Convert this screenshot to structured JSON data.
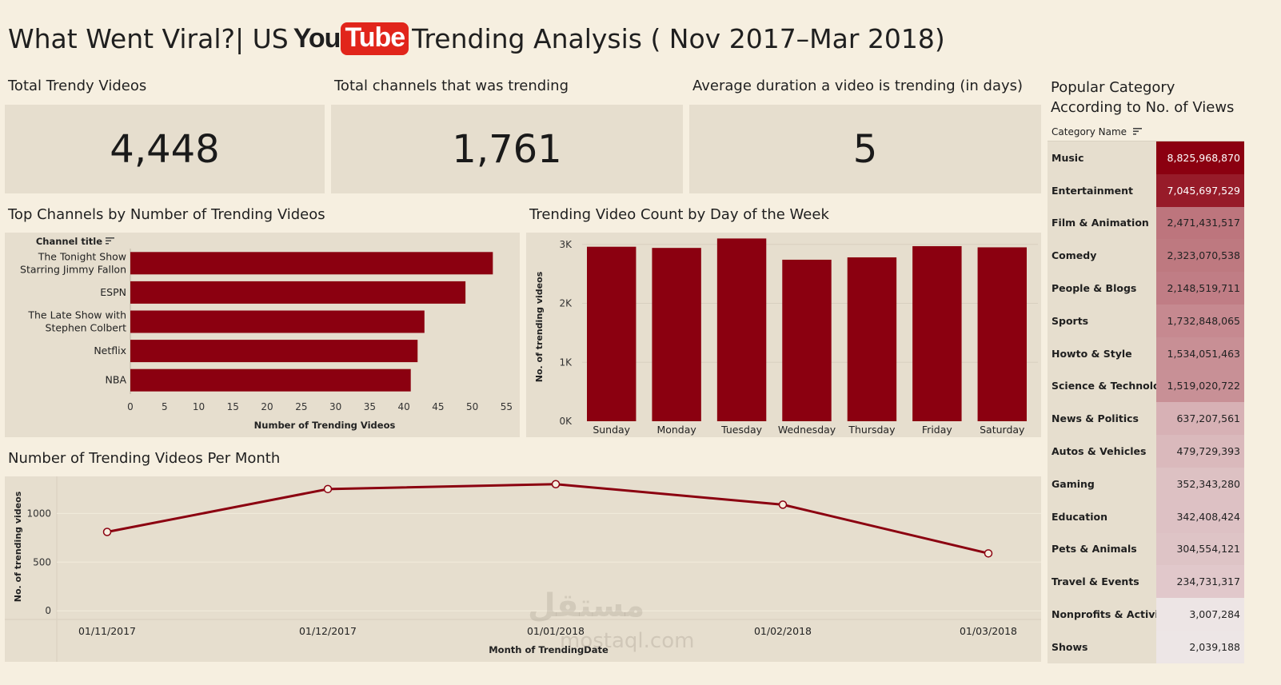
{
  "header": {
    "title_prefix": "What Went Viral?| US",
    "logo_you": "You",
    "logo_tube": "Tube",
    "title_suffix": "Trending Analysis ( Nov 2017–Mar 2018)"
  },
  "kpis": [
    {
      "label": "Total Trendy Videos",
      "value": "4,448"
    },
    {
      "label": "Total channels that was trending",
      "value": "1,761"
    },
    {
      "label": "Average duration a video is trending (in days)",
      "value": "5"
    }
  ],
  "colors": {
    "accent": "#8b0010",
    "panel": "#e6dece",
    "background": "#f6efe0"
  },
  "category_panel": {
    "title_line1": "Popular Category",
    "title_line2": "According to No. of Views",
    "column_header": "Category Name",
    "sort_icon": "sort-icon"
  },
  "chart_data": [
    {
      "type": "bar",
      "orientation": "horizontal",
      "title": "Top Channels by Number of Trending Videos",
      "header": "Channel title",
      "categories": [
        [
          "The Tonight Show",
          "Starring Jimmy Fallon"
        ],
        [
          "ESPN"
        ],
        [
          "The Late Show with",
          "Stephen Colbert"
        ],
        [
          "Netflix"
        ],
        [
          "NBA"
        ]
      ],
      "values": [
        53,
        49,
        43,
        42,
        41
      ],
      "xlabel": "Number of Trending Videos",
      "xticks": [
        0,
        5,
        10,
        15,
        20,
        25,
        30,
        35,
        40,
        45,
        50,
        55
      ],
      "xlim": [
        0,
        56
      ]
    },
    {
      "type": "bar",
      "title": "Trending Video Count by Day of the Week",
      "categories": [
        "Sunday",
        "Monday",
        "Tuesday",
        "Wednesday",
        "Thursday",
        "Friday",
        "Saturday"
      ],
      "values": [
        2960,
        2940,
        3100,
        2740,
        2780,
        2970,
        2950
      ],
      "ylabel": "No. of trending videos",
      "yticks": [
        "0K",
        "1K",
        "2K",
        "3K"
      ],
      "ytick_values": [
        0,
        1000,
        2000,
        3000
      ],
      "ylim": [
        0,
        3200
      ]
    },
    {
      "type": "line",
      "title": "Number of Trending Videos Per Month",
      "x": [
        "01/11/2017",
        "01/12/2017",
        "01/01/2018",
        "01/02/2018",
        "01/03/2018"
      ],
      "values": [
        810,
        1250,
        1300,
        1090,
        590
      ],
      "xlabel": "Month of TrendingDate",
      "ylabel": "No. of trending videos",
      "yticks": [
        0,
        500,
        1000
      ],
      "ylim": [
        -80,
        1380
      ]
    },
    {
      "type": "table",
      "title": "Popular Category According to No. of Views",
      "rows": [
        {
          "name": "Music",
          "views": "8,825,968,870",
          "value": 8825968870
        },
        {
          "name": "Entertainment",
          "views": "7,045,697,529",
          "value": 7045697529
        },
        {
          "name": "Film & Animation",
          "views": "2,471,431,517",
          "value": 2471431517
        },
        {
          "name": "Comedy",
          "views": "2,323,070,538",
          "value": 2323070538
        },
        {
          "name": "People & Blogs",
          "views": "2,148,519,711",
          "value": 2148519711
        },
        {
          "name": "Sports",
          "views": "1,732,848,065",
          "value": 1732848065
        },
        {
          "name": "Howto & Style",
          "views": "1,534,051,463",
          "value": 1534051463
        },
        {
          "name": "Science & Technology",
          "views": "1,519,020,722",
          "value": 1519020722
        },
        {
          "name": "News & Politics",
          "views": "637,207,561",
          "value": 637207561
        },
        {
          "name": "Autos & Vehicles",
          "views": "479,729,393",
          "value": 479729393
        },
        {
          "name": "Gaming",
          "views": "352,343,280",
          "value": 352343280
        },
        {
          "name": "Education",
          "views": "342,408,424",
          "value": 342408424
        },
        {
          "name": "Pets & Animals",
          "views": "304,554,121",
          "value": 304554121
        },
        {
          "name": "Travel & Events",
          "views": "234,731,317",
          "value": 234731317
        },
        {
          "name": "Nonprofits & Activism",
          "views": "3,007,284",
          "value": 3007284
        },
        {
          "name": "Shows",
          "views": "2,039,188",
          "value": 2039188
        }
      ]
    }
  ],
  "watermark": {
    "arabic": "مستقل",
    "latin": "mostaql.com"
  }
}
